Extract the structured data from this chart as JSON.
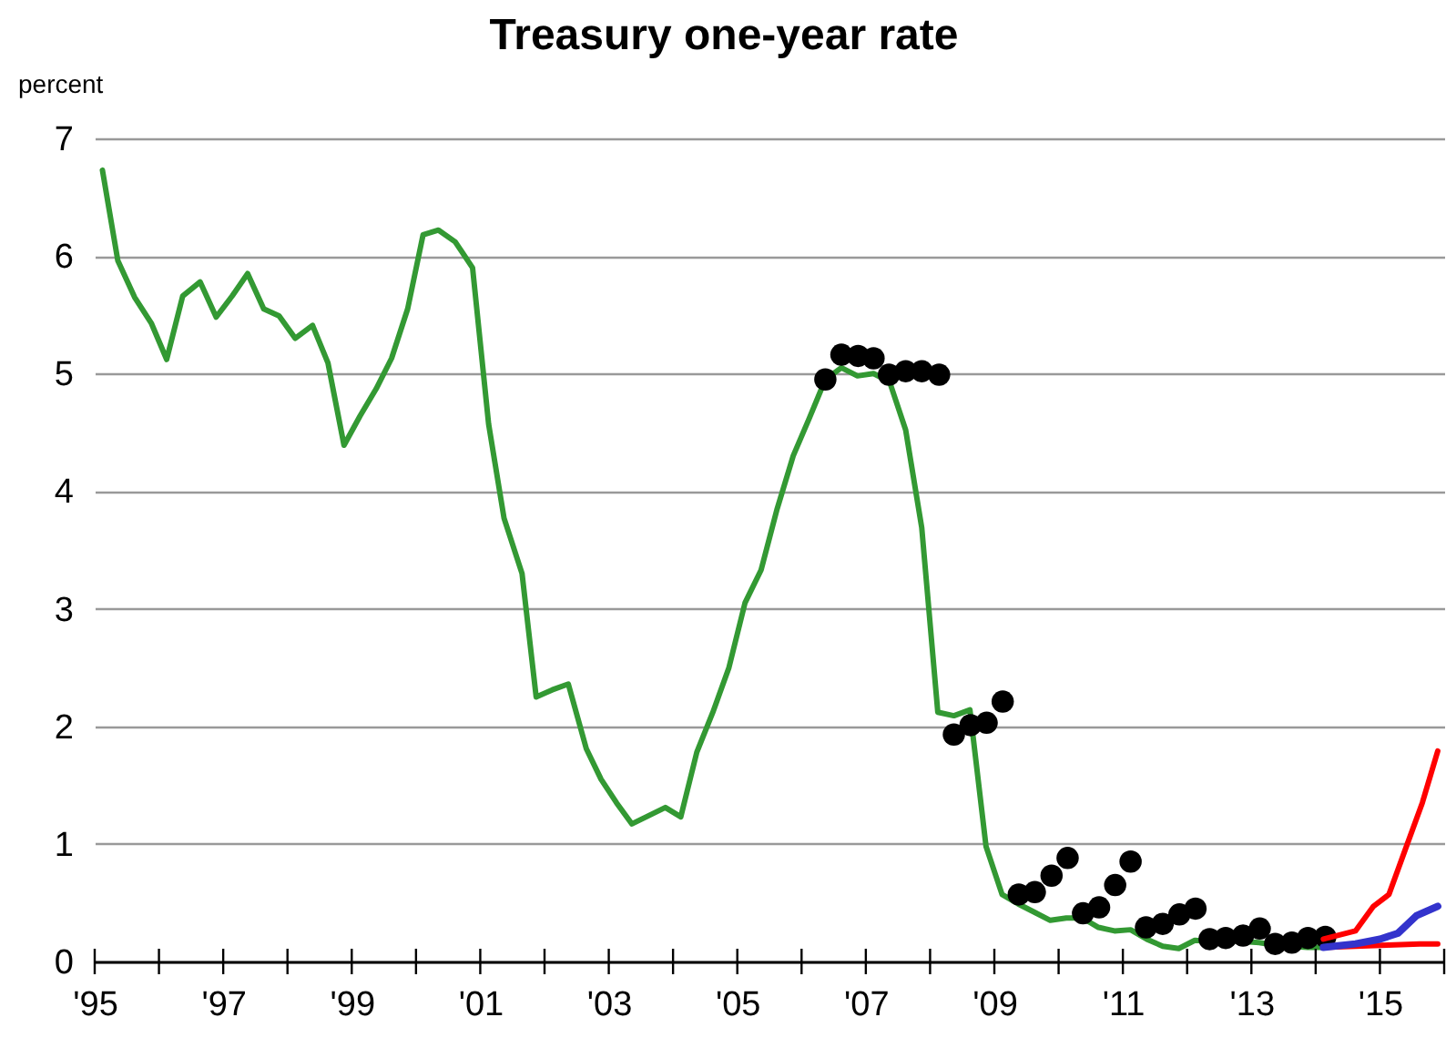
{
  "chart_data": {
    "type": "line",
    "title": "Treasury one-year rate",
    "ylabel": "percent",
    "xlim": [
      1995,
      2016
    ],
    "ylim": [
      0,
      7
    ],
    "yticks": [
      0,
      1,
      2,
      3,
      4,
      5,
      6,
      7
    ],
    "xticks": [
      {
        "value": 1995,
        "label": "'95"
      },
      {
        "value": 1996,
        "label": null
      },
      {
        "value": 1997,
        "label": "'97"
      },
      {
        "value": 1998,
        "label": null
      },
      {
        "value": 1999,
        "label": "'99"
      },
      {
        "value": 2000,
        "label": null
      },
      {
        "value": 2001,
        "label": "'01"
      },
      {
        "value": 2002,
        "label": null
      },
      {
        "value": 2003,
        "label": "'03"
      },
      {
        "value": 2004,
        "label": null
      },
      {
        "value": 2005,
        "label": "'05"
      },
      {
        "value": 2006,
        "label": null
      },
      {
        "value": 2007,
        "label": "'07"
      },
      {
        "value": 2008,
        "label": null
      },
      {
        "value": 2009,
        "label": "'09"
      },
      {
        "value": 2010,
        "label": null
      },
      {
        "value": 2011,
        "label": "'11"
      },
      {
        "value": 2012,
        "label": null
      },
      {
        "value": 2013,
        "label": "'13"
      },
      {
        "value": 2014,
        "label": null
      },
      {
        "value": 2015,
        "label": "'15"
      },
      {
        "value": 2016,
        "label": null
      }
    ],
    "grid": "y",
    "series": [
      {
        "color": "#339933",
        "x": [
          1995.12,
          1995.36,
          1995.62,
          1995.88,
          1996.12,
          1996.37,
          1996.64,
          1996.89,
          1997.14,
          1997.38,
          1997.63,
          1997.87,
          1998.12,
          1998.39,
          1998.63,
          1998.88,
          1999.13,
          1999.38,
          1999.62,
          1999.87,
          2000.11,
          2000.35,
          2000.61,
          2000.88,
          2001.13,
          2001.37,
          2001.65,
          2001.87,
          2002.12,
          2002.37,
          2002.65,
          2002.88,
          2003.12,
          2003.36,
          2003.62,
          2003.88,
          2004.12,
          2004.37,
          2004.62,
          2004.87,
          2005.12,
          2005.37,
          2005.62,
          2005.87,
          2006.12,
          2006.37,
          2006.62,
          2006.87,
          2007.12,
          2007.37,
          2007.62,
          2007.87,
          2008.12,
          2008.37,
          2008.62,
          2008.87,
          2009.12,
          2009.37,
          2009.62,
          2009.87,
          2010.12,
          2010.37,
          2010.62,
          2010.87,
          2011.12,
          2011.37,
          2011.62,
          2011.87,
          2012.12,
          2012.37,
          2012.62,
          2012.87,
          2013.12,
          2013.37,
          2013.62,
          2013.87,
          2014.12
        ],
        "values": [
          6.73,
          5.96,
          5.65,
          5.43,
          5.12,
          5.66,
          5.78,
          5.48,
          5.66,
          5.85,
          5.55,
          5.49,
          5.3,
          5.41,
          5.09,
          4.39,
          4.64,
          4.87,
          5.13,
          5.55,
          6.18,
          6.22,
          6.12,
          5.9,
          4.57,
          3.77,
          3.3,
          2.25,
          2.31,
          2.36,
          1.81,
          1.55,
          1.35,
          1.17,
          1.24,
          1.31,
          1.23,
          1.78,
          2.12,
          2.5,
          3.05,
          3.33,
          3.85,
          4.3,
          4.62,
          4.95,
          5.05,
          4.98,
          5.0,
          4.93,
          4.52,
          3.69,
          2.12,
          2.09,
          2.14,
          0.98,
          0.57,
          0.49,
          0.42,
          0.35,
          0.37,
          0.37,
          0.29,
          0.26,
          0.27,
          0.19,
          0.13,
          0.11,
          0.18,
          0.17,
          0.18,
          0.17,
          0.16,
          0.14,
          0.13,
          0.12,
          0.12
        ]
      },
      {
        "type": "scatter",
        "color": "#000000",
        "marker": "circle",
        "x": [
          2006.37,
          2006.62,
          2006.88,
          2007.12,
          2007.36,
          2007.62,
          2007.87,
          2008.14,
          2008.37,
          2008.63,
          2008.88,
          2009.13,
          2009.38,
          2009.63,
          2009.89,
          2010.14,
          2010.38,
          2010.63,
          2010.88,
          2011.12,
          2011.36,
          2011.62,
          2011.88,
          2012.13,
          2012.35,
          2012.6,
          2012.87,
          2013.13,
          2013.37,
          2013.63,
          2013.88,
          2014.15
        ],
        "values": [
          4.95,
          5.16,
          5.15,
          5.13,
          4.99,
          5.02,
          5.02,
          4.99,
          1.93,
          2.01,
          2.03,
          2.21,
          0.57,
          0.59,
          0.73,
          0.88,
          0.41,
          0.46,
          0.65,
          0.85,
          0.29,
          0.32,
          0.4,
          0.45,
          0.19,
          0.2,
          0.22,
          0.28,
          0.15,
          0.16,
          0.2,
          0.21
        ]
      },
      {
        "color": "#ff0000",
        "x": [
          2014.12,
          2014.62,
          2014.9,
          2015.14,
          2015.38,
          2015.66,
          2015.9
        ],
        "values": [
          0.19,
          0.26,
          0.47,
          0.57,
          0.93,
          1.35,
          1.79
        ]
      },
      {
        "color": "#ff0000",
        "x": [
          2014.12,
          2014.62,
          2015.12,
          2015.62,
          2015.9
        ],
        "values": [
          0.12,
          0.13,
          0.14,
          0.15,
          0.15
        ]
      },
      {
        "color": "#3333cc",
        "x": [
          2014.12,
          2014.62,
          2015.0,
          2015.28,
          2015.57,
          2015.9
        ],
        "values": [
          0.12,
          0.15,
          0.19,
          0.24,
          0.39,
          0.47
        ]
      }
    ]
  }
}
